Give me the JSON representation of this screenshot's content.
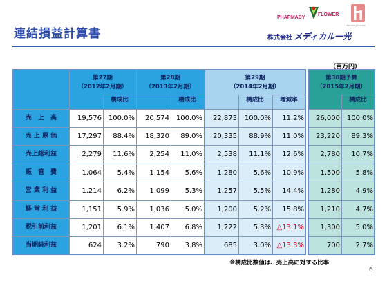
{
  "slide": {
    "title": "連結損益計算書",
    "unit": "（百万円）",
    "footnote": "※構成比数値は、売上高に対する比率",
    "page_number": "6"
  },
  "logo": {
    "pharmacy": "PHARMACY",
    "flower": "FLOWER",
    "harmony": "Harmony House",
    "company_prefix": "株式会社",
    "company_brand": "メディカル一光"
  },
  "table": {
    "periods": [
      {
        "name": "第27期",
        "range": "（2012年2月期）",
        "subcols": [
          "構成比"
        ]
      },
      {
        "name": "第28期",
        "range": "（2013年2月期）",
        "subcols": [
          "構成比"
        ]
      },
      {
        "name": "第29期",
        "range": "（2014年2月期）",
        "subcols": [
          "構成比",
          "増減率"
        ]
      },
      {
        "name": "第30期予算",
        "range": "（2015年2月期）",
        "subcols": [
          "構成比"
        ]
      }
    ],
    "rows": [
      {
        "label": "売　上　高",
        "values": [
          "19,576",
          "100.0%",
          "20,574",
          "100.0%",
          "22,873",
          "100.0%",
          "11.2%",
          "26,000",
          "100.0%"
        ]
      },
      {
        "label": "売 上 原 価",
        "values": [
          "17,297",
          "88.4%",
          "18,320",
          "89.0%",
          "20,335",
          "88.9%",
          "11.0%",
          "23,220",
          "89.3%"
        ]
      },
      {
        "label": "売上総利益",
        "values": [
          "2,279",
          "11.6%",
          "2,254",
          "11.0%",
          "2,538",
          "11.1%",
          "12.6%",
          "2,780",
          "10.7%"
        ]
      },
      {
        "label": "販　管　費",
        "values": [
          "1,064",
          "5.4%",
          "1,154",
          "5.6%",
          "1,280",
          "5.6%",
          "10.9%",
          "1,500",
          "5.8%"
        ]
      },
      {
        "label": "営 業 利 益",
        "values": [
          "1,214",
          "6.2%",
          "1,099",
          "5.3%",
          "1,257",
          "5.5%",
          "14.4%",
          "1,280",
          "4.9%"
        ]
      },
      {
        "label": "経 常 利 益",
        "values": [
          "1,151",
          "5.9%",
          "1,036",
          "5.0%",
          "1,200",
          "5.2%",
          "15.8%",
          "1,210",
          "4.7%"
        ]
      },
      {
        "label": "税引前利益",
        "values": [
          "1,201",
          "6.1%",
          "1,407",
          "6.8%",
          "1,222",
          "5.3%",
          "△13.1%",
          "1,300",
          "5.0%"
        ]
      },
      {
        "label": "当期純利益",
        "values": [
          "624",
          "3.2%",
          "790",
          "3.8%",
          "685",
          "3.0%",
          "△13.3%",
          "700",
          "2.7%"
        ]
      }
    ],
    "negative_color": "#e0001b",
    "header_color": "#2aa3e0",
    "budget_color": "#2aa198"
  }
}
